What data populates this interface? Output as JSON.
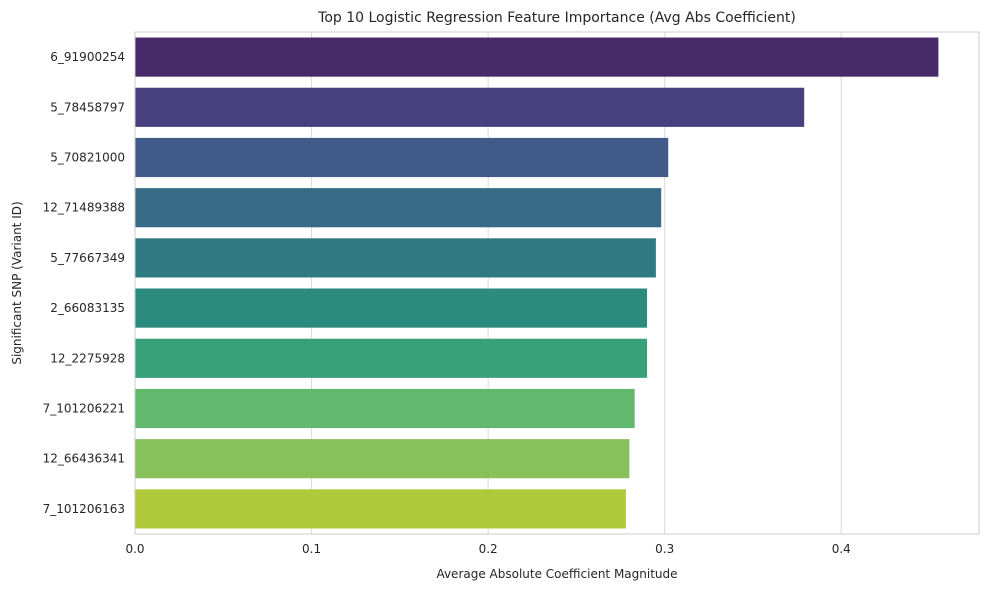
{
  "chart_data": {
    "type": "bar",
    "orientation": "horizontal",
    "title": "Top 10 Logistic Regression Feature Importance (Avg Abs Coefficient)",
    "xlabel": "Average Absolute Coefficient Magnitude",
    "ylabel": "Significant SNP (Variant ID)",
    "xlim": [
      0,
      0.478
    ],
    "xticks": [
      0.0,
      0.1,
      0.2,
      0.3,
      0.4
    ],
    "xtick_labels": [
      "0.0",
      "0.1",
      "0.2",
      "0.3",
      "0.4"
    ],
    "grid": true,
    "categories": [
      "6_91900254",
      "5_78458797",
      "5_70821000",
      "12_71489388",
      "5_77667349",
      "2_66083135",
      "12_2275928",
      "7_101206221",
      "12_66436341",
      "7_101206163"
    ],
    "values": [
      0.455,
      0.379,
      0.302,
      0.298,
      0.295,
      0.29,
      0.29,
      0.283,
      0.28,
      0.278
    ],
    "colors": [
      "#482a6a",
      "#473f7e",
      "#425a8a",
      "#376b85",
      "#2e7a80",
      "#2b8b7d",
      "#38a17a",
      "#62b86d",
      "#88c15a",
      "#b0c93a"
    ]
  }
}
